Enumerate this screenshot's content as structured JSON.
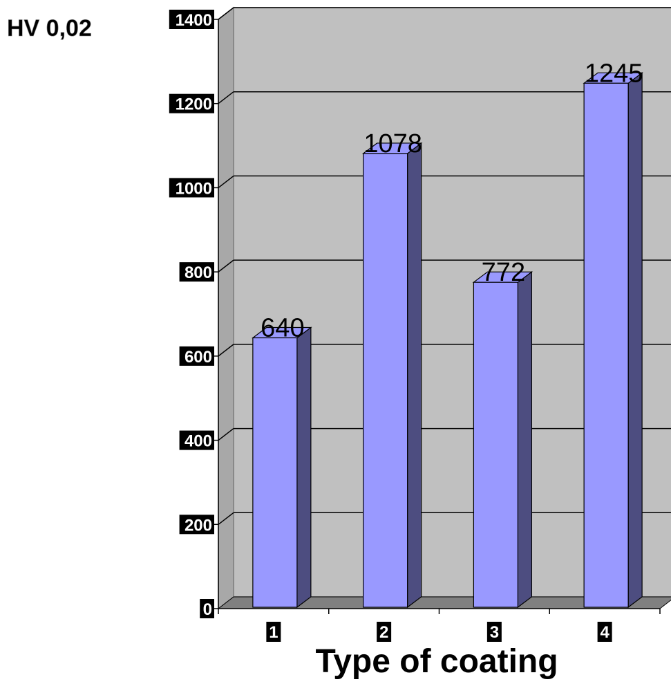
{
  "chart_data": {
    "type": "bar",
    "title": "",
    "ylabel": "HV 0,02",
    "xlabel": "Type of coating",
    "categories": [
      "1",
      "2",
      "3",
      "4"
    ],
    "values": [
      640,
      1078,
      772,
      1245
    ],
    "data_labels": [
      "640",
      "1078",
      "772",
      "1245"
    ],
    "ylim": [
      0,
      1400
    ],
    "yticks": [
      "0",
      "200",
      "400",
      "600",
      "800",
      "1000",
      "1200",
      "1400"
    ],
    "grid": true,
    "style": "3d-column",
    "colors": {
      "bar_front": "#9999ff",
      "bar_side": "#4d4d80",
      "plot_background": "#c0c0c0",
      "floor": "#808080",
      "gridline": "#000000",
      "tick_label_background": "#000000",
      "tick_label_text": "#ffffff"
    }
  }
}
